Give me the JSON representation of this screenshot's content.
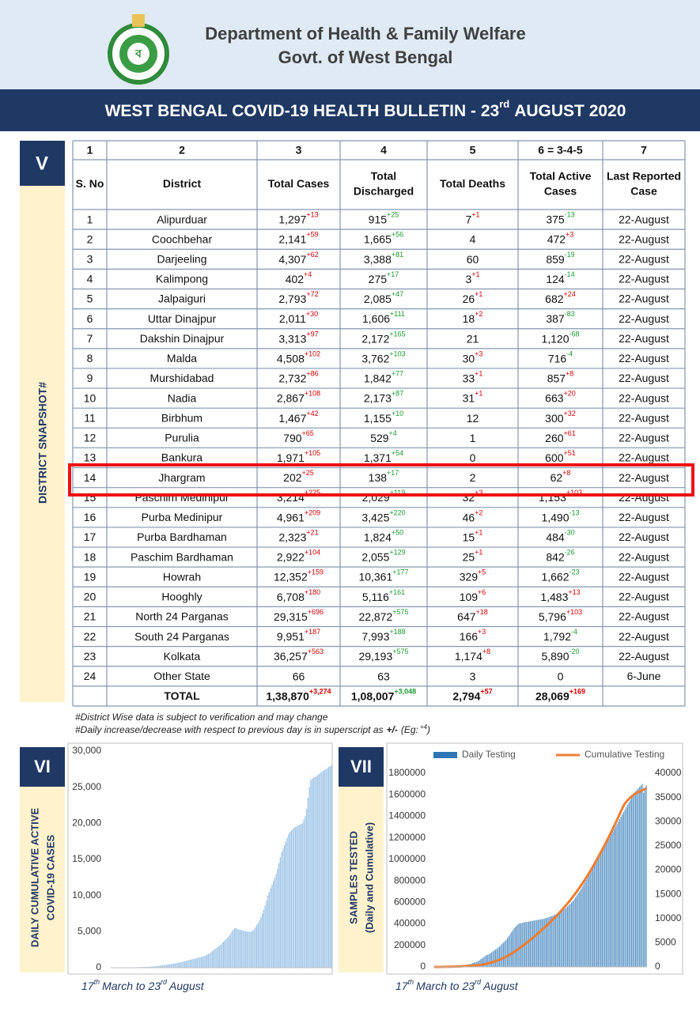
{
  "header": {
    "title": "Department of Health & Family Welfare",
    "subtitle": "Govt. of West Bengal"
  },
  "banner": {
    "text": "WEST BENGAL COVID-19 HEALTH BULLETIN - 23",
    "sup": "rd",
    "text_after": "AUGUST 2020"
  },
  "section_v": {
    "label": "V",
    "side_label": "DISTRICT SNAPSHOT#"
  },
  "table": {
    "column_numbers": [
      "1",
      "2",
      "3",
      "4",
      "5",
      "6 = 3-4-5",
      "7"
    ],
    "header": [
      [
        "S. No"
      ],
      [
        "District"
      ],
      [
        "Total Cases"
      ],
      [
        "Total",
        "Discharged"
      ],
      [
        "Total Deaths"
      ],
      [
        "Total Active",
        "Cases"
      ],
      [
        "Last Reported",
        "Case"
      ]
    ],
    "rows": [
      {
        "sno": "1",
        "district": "Alipurduar",
        "cases": "1,297",
        "cases_sup": "+13",
        "discharged": "915",
        "discharged_sup": "+25",
        "deaths": "7",
        "deaths_sup": "+1",
        "active": "375",
        "active_sup": "-13",
        "last": "22-August"
      },
      {
        "sno": "2",
        "district": "Coochbehar",
        "cases": "2,141",
        "cases_sup": "+59",
        "discharged": "1,665",
        "discharged_sup": "+56",
        "deaths": "4",
        "active": "472",
        "active_sup": "+3",
        "last": "22-August"
      },
      {
        "sno": "3",
        "district": "Darjeeling",
        "cases": "4,307",
        "cases_sup": "+62",
        "discharged": "3,388",
        "discharged_sup": "+81",
        "deaths": "60",
        "active": "859",
        "active_sup": "-19",
        "last": "22-August"
      },
      {
        "sno": "4",
        "district": "Kalimpong",
        "cases": "402",
        "cases_sup": "+4",
        "discharged": "275",
        "discharged_sup": "+17",
        "deaths": "3",
        "deaths_sup": "+1",
        "active": "124",
        "active_sup": "-14",
        "last": "22-August"
      },
      {
        "sno": "5",
        "district": "Jalpaiguri",
        "cases": "2,793",
        "cases_sup": "+72",
        "discharged": "2,085",
        "discharged_sup": "+47",
        "deaths": "26",
        "deaths_sup": "+1",
        "active": "682",
        "active_sup": "+24",
        "last": "22-August"
      },
      {
        "sno": "6",
        "district": "Uttar Dinajpur",
        "cases": "2,011",
        "cases_sup": "+30",
        "discharged": "1,606",
        "discharged_sup": "+111",
        "deaths": "18",
        "deaths_sup": "+2",
        "active": "387",
        "active_sup": "-83",
        "last": "22-August"
      },
      {
        "sno": "7",
        "district": "Dakshin Dinajpur",
        "cases": "3,313",
        "cases_sup": "+97",
        "discharged": "2,172",
        "discharged_sup": "+165",
        "deaths": "21",
        "active": "1,120",
        "active_sup": "-68",
        "last": "22-August"
      },
      {
        "sno": "8",
        "district": "Malda",
        "cases": "4,508",
        "cases_sup": "+102",
        "discharged": "3,762",
        "discharged_sup": "+103",
        "deaths": "30",
        "deaths_sup": "+3",
        "active": "716",
        "active_sup": "-4",
        "last": "22-August"
      },
      {
        "sno": "9",
        "district": "Murshidabad",
        "cases": "2,732",
        "cases_sup": "+86",
        "discharged": "1,842",
        "discharged_sup": "+77",
        "deaths": "33",
        "deaths_sup": "+1",
        "active": "857",
        "active_sup": "+8",
        "last": "22-August"
      },
      {
        "sno": "10",
        "district": "Nadia",
        "cases": "2,867",
        "cases_sup": "+108",
        "discharged": "2,173",
        "discharged_sup": "+87",
        "deaths": "31",
        "deaths_sup": "+1",
        "active": "663",
        "active_sup": "+20",
        "last": "22-August"
      },
      {
        "sno": "11",
        "district": "Birbhum",
        "cases": "1,467",
        "cases_sup": "+42",
        "discharged": "1,155",
        "discharged_sup": "+10",
        "deaths": "12",
        "active": "300",
        "active_sup": "+32",
        "last": "22-August"
      },
      {
        "sno": "12",
        "district": "Purulia",
        "cases": "790",
        "cases_sup": "+65",
        "discharged": "529",
        "discharged_sup": "+4",
        "deaths": "1",
        "active": "260",
        "active_sup": "+61",
        "last": "22-August"
      },
      {
        "sno": "13",
        "district": "Bankura",
        "cases": "1,971",
        "cases_sup": "+105",
        "discharged": "1,371",
        "discharged_sup": "+54",
        "deaths": "0",
        "active": "600",
        "active_sup": "+51",
        "last": "22-August"
      },
      {
        "sno": "14",
        "district": "Jhargram",
        "cases": "202",
        "cases_sup": "+25",
        "discharged": "138",
        "discharged_sup": "+17",
        "deaths": "2",
        "active": "62",
        "active_sup": "+8",
        "last": "22-August"
      },
      {
        "sno": "15",
        "district": "Paschim Medinipur",
        "cases": "3,214",
        "cases_sup": "+225",
        "discharged": "2,029",
        "discharged_sup": "+119",
        "deaths": "32",
        "deaths_sup": "+3",
        "active": "1,153",
        "active_sup": "+103",
        "last": "22-August"
      },
      {
        "sno": "16",
        "district": "Purba Medinipur",
        "cases": "4,961",
        "cases_sup": "+209",
        "discharged": "3,425",
        "discharged_sup": "+220",
        "deaths": "46",
        "deaths_sup": "+2",
        "active": "1,490",
        "active_sup": "-13",
        "last": "22-August"
      },
      {
        "sno": "17",
        "district": "Purba Bardhaman",
        "cases": "2,323",
        "cases_sup": "+21",
        "discharged": "1,824",
        "discharged_sup": "+50",
        "deaths": "15",
        "deaths_sup": "+1",
        "active": "484",
        "active_sup": "-30",
        "last": "22-August"
      },
      {
        "sno": "18",
        "district": "Paschim Bardhaman",
        "cases": "2,922",
        "cases_sup": "+104",
        "discharged": "2,055",
        "discharged_sup": "+129",
        "deaths": "25",
        "deaths_sup": "+1",
        "active": "842",
        "active_sup": "-26",
        "last": "22-August"
      },
      {
        "sno": "19",
        "district": "Howrah",
        "cases": "12,352",
        "cases_sup": "+159",
        "discharged": "10,361",
        "discharged_sup": "+177",
        "deaths": "329",
        "deaths_sup": "+5",
        "active": "1,662",
        "active_sup": "-23",
        "last": "22-August"
      },
      {
        "sno": "20",
        "district": "Hooghly",
        "cases": "6,708",
        "cases_sup": "+180",
        "discharged": "5,116",
        "discharged_sup": "+161",
        "deaths": "109",
        "deaths_sup": "+6",
        "active": "1,483",
        "active_sup": "+13",
        "last": "22-August"
      },
      {
        "sno": "21",
        "district": "North 24 Parganas",
        "cases": "29,315",
        "cases_sup": "+696",
        "discharged": "22,872",
        "discharged_sup": "+575",
        "deaths": "647",
        "deaths_sup": "+18",
        "active": "5,796",
        "active_sup": "+103",
        "last": "22-August"
      },
      {
        "sno": "22",
        "district": "South 24 Parganas",
        "cases": "9,951",
        "cases_sup": "+187",
        "discharged": "7,993",
        "discharged_sup": "+188",
        "deaths": "166",
        "deaths_sup": "+3",
        "active": "1,792",
        "active_sup": "-4",
        "last": "22-August"
      },
      {
        "sno": "23",
        "district": "Kolkata",
        "cases": "36,257",
        "cases_sup": "+563",
        "discharged": "29,193",
        "discharged_sup": "+575",
        "deaths": "1,174",
        "deaths_sup": "+8",
        "active": "5,890",
        "active_sup": "-20",
        "last": "22-August"
      },
      {
        "sno": "24",
        "district": "Other State",
        "cases": "66",
        "discharged": "63",
        "deaths": "3",
        "active": "0",
        "last": "6-June"
      }
    ],
    "total": {
      "label": "TOTAL",
      "cases": "1,38,870",
      "cases_sup": "+3,274",
      "discharged": "1,08,007",
      "discharged_sup": "+3,048",
      "deaths": "2,794",
      "deaths_sup": "+57",
      "active": "28,069",
      "active_sup": "+169"
    }
  },
  "notes": {
    "line1": "#District Wise data is subject to verification and may change",
    "line2": "#Daily increase/decrease with respect to previous day is in superscript as",
    "line2_bold": "+/-",
    "line2_eg": "(Eg:",
    "line2_sup": "+4",
    "line2_end": ")"
  },
  "chart_data": [
    {
      "type": "bar",
      "section": "VI",
      "ylabel": [
        "DAILY  CUMULATIVE  ACTIVE",
        "COVID-19 CASES"
      ],
      "xlabel": {
        "a": "17",
        "a_sup": "th",
        "b": "March to 23",
        "b_sup": "rd",
        "c": "August"
      },
      "color": "#9dc3e6",
      "ylim": [
        0,
        30000
      ],
      "yticks": [
        0,
        {
          "value": 5000,
          "label": "5,000"
        },
        {
          "value": 10000,
          "label": "10,000"
        },
        {
          "value": 15000,
          "label": "15,000"
        },
        {
          "value": 20000,
          "label": "20,000"
        },
        {
          "value": 25000,
          "label": "25,000"
        },
        {
          "value": 30000,
          "label": "30,000"
        }
      ],
      "values": [
        1,
        1,
        2,
        2,
        3,
        5,
        7,
        7,
        9,
        10,
        12,
        15,
        17,
        18,
        22,
        30,
        37,
        45,
        53,
        61,
        69,
        80,
        90,
        95,
        103,
        110,
        120,
        135,
        150,
        160,
        175,
        190,
        210,
        230,
        250,
        270,
        300,
        330,
        360,
        390,
        420,
        450,
        480,
        510,
        540,
        570,
        600,
        640,
        680,
        720,
        760,
        800,
        850,
        900,
        950,
        1000,
        1050,
        1100,
        1150,
        1200,
        1250,
        1300,
        1350,
        1400,
        1450,
        1500,
        1550,
        1600,
        1700,
        1800,
        1900,
        2000,
        2150,
        2300,
        2450,
        2600,
        2750,
        2900,
        3050,
        3200,
        3400,
        3600,
        3800,
        4000,
        4200,
        4400,
        4700,
        5000,
        5300,
        5500,
        5450,
        5400,
        5300,
        5250,
        5200,
        5150,
        5100,
        5050,
        5000,
        5000,
        4950,
        5000,
        5100,
        5300,
        5600,
        5900,
        6200,
        6600,
        7000,
        7500,
        8000,
        8600,
        9300,
        10000,
        10500,
        11000,
        11500,
        12000,
        12500,
        13000,
        13700,
        14500,
        15300,
        16000,
        16500,
        17000,
        17500,
        18000,
        18500,
        18800,
        19000,
        19200,
        19400,
        19500,
        19600,
        19700,
        19800,
        19900,
        20000,
        20500,
        21000,
        22000,
        23500,
        25000,
        26000,
        26200,
        26300,
        26400,
        26500,
        26700,
        26800,
        27000,
        27100,
        27300,
        27400,
        27500,
        27600,
        27800,
        27900,
        28069
      ]
    },
    {
      "type": "combo",
      "section": "VII",
      "ylabel": [
        "SAMPLES TESTED",
        "(Daily and Cumulative)"
      ],
      "xlabel": {
        "a": "17",
        "a_sup": "th",
        "b": "March to 23",
        "b_sup": "rd",
        "c": "August"
      },
      "ylim": [
        0,
        1800000
      ],
      "yticks": [
        0,
        200000,
        400000,
        600000,
        800000,
        1000000,
        1200000,
        1400000,
        1600000,
        1800000
      ],
      "y2lim": [
        0,
        40000
      ],
      "y2ticks": [
        0,
        5000,
        10000,
        15000,
        20000,
        25000,
        30000,
        35000,
        40000
      ],
      "series": [
        {
          "name": "Daily Testing",
          "type": "bar",
          "axis": "y2",
          "color": "#2e75b6",
          "values": [
            20,
            30,
            40,
            50,
            60,
            70,
            80,
            90,
            100,
            110,
            120,
            130,
            140,
            150,
            160,
            170,
            180,
            200,
            220,
            250,
            280,
            300,
            350,
            400,
            450,
            500,
            550,
            600,
            700,
            800,
            900,
            1000,
            1100,
            1200,
            1400,
            1600,
            1800,
            2000,
            2200,
            2400,
            2500,
            2600,
            2800,
            3000,
            3200,
            3400,
            3600,
            3800,
            4000,
            4200,
            4500,
            4800,
            5000,
            5300,
            5600,
            6000,
            6400,
            6800,
            7200,
            7600,
            8000,
            8300,
            8600,
            8800,
            9000,
            9000,
            9100,
            9200,
            9200,
            9300,
            9300,
            9400,
            9400,
            9500,
            9500,
            9600,
            9600,
            9700,
            9700,
            9800,
            9800,
            9900,
            9900,
            10000,
            10100,
            10200,
            10300,
            10400,
            10500,
            10600,
            10700,
            10800,
            10900,
            11000,
            11200,
            11400,
            11600,
            11800,
            12000,
            12200,
            12500,
            12800,
            13000,
            13300,
            13600,
            14000,
            14400,
            14800,
            15200,
            15600,
            16000,
            16500,
            17000,
            17500,
            18000,
            18500,
            19000,
            19500,
            20000,
            20500,
            21000,
            21500,
            22000,
            22500,
            23000,
            23500,
            24000,
            24500,
            25000,
            25500,
            26000,
            26500,
            27000,
            27500,
            28000,
            28500,
            29000,
            29500,
            30000,
            30500,
            31000,
            31500,
            32000,
            32500,
            33000,
            33500,
            34000,
            34500,
            35000,
            35500,
            36000,
            36300,
            36600,
            36900,
            37200,
            37500,
            37800,
            36000,
            37000,
            37500
          ]
        },
        {
          "name": "Cumulative Testing",
          "type": "line",
          "color": "#ed7d31",
          "values": [
            0,
            0,
            0,
            0,
            0,
            1000,
            1000,
            1000,
            1000,
            2000,
            2000,
            2000,
            2000,
            3000,
            3000,
            3000,
            4000,
            4000,
            4000,
            5000,
            5000,
            6000,
            6000,
            7000,
            8000,
            8000,
            9000,
            10000,
            11000,
            12000,
            13000,
            14000,
            15000,
            16000,
            18000,
            20000,
            22000,
            24000,
            26000,
            29000,
            32000,
            35000,
            38000,
            42000,
            46000,
            50000,
            54000,
            58000,
            62000,
            67000,
            72000,
            77000,
            83000,
            89000,
            95000,
            102000,
            109000,
            116000,
            124000,
            132000,
            140000,
            148000,
            157000,
            166000,
            175000,
            184000,
            193000,
            202000,
            211000,
            221000,
            231000,
            241000,
            251000,
            261000,
            271000,
            281000,
            292000,
            303000,
            314000,
            325000,
            336000,
            347000,
            358000,
            369000,
            381000,
            393000,
            405000,
            417000,
            429000,
            441000,
            453000,
            466000,
            479000,
            492000,
            505000,
            519000,
            533000,
            547000,
            561000,
            576000,
            591000,
            606000,
            621000,
            637000,
            653000,
            669000,
            686000,
            703000,
            720000,
            738000,
            756000,
            774000,
            793000,
            812000,
            831000,
            851000,
            871000,
            891000,
            912000,
            933000,
            955000,
            977000,
            1000000,
            1022000,
            1045000,
            1068000,
            1091000,
            1114000,
            1138000,
            1162000,
            1186000,
            1211000,
            1236000,
            1261000,
            1287000,
            1313000,
            1339000,
            1365000,
            1392000,
            1419000,
            1446000,
            1473000,
            1500000,
            1520000,
            1535000,
            1550000,
            1562000,
            1574000,
            1585000,
            1596000,
            1605000,
            1612000,
            1618000,
            1624000,
            1630000,
            1636000,
            1642000,
            1648000,
            1654000,
            1660000
          ]
        }
      ]
    }
  ]
}
